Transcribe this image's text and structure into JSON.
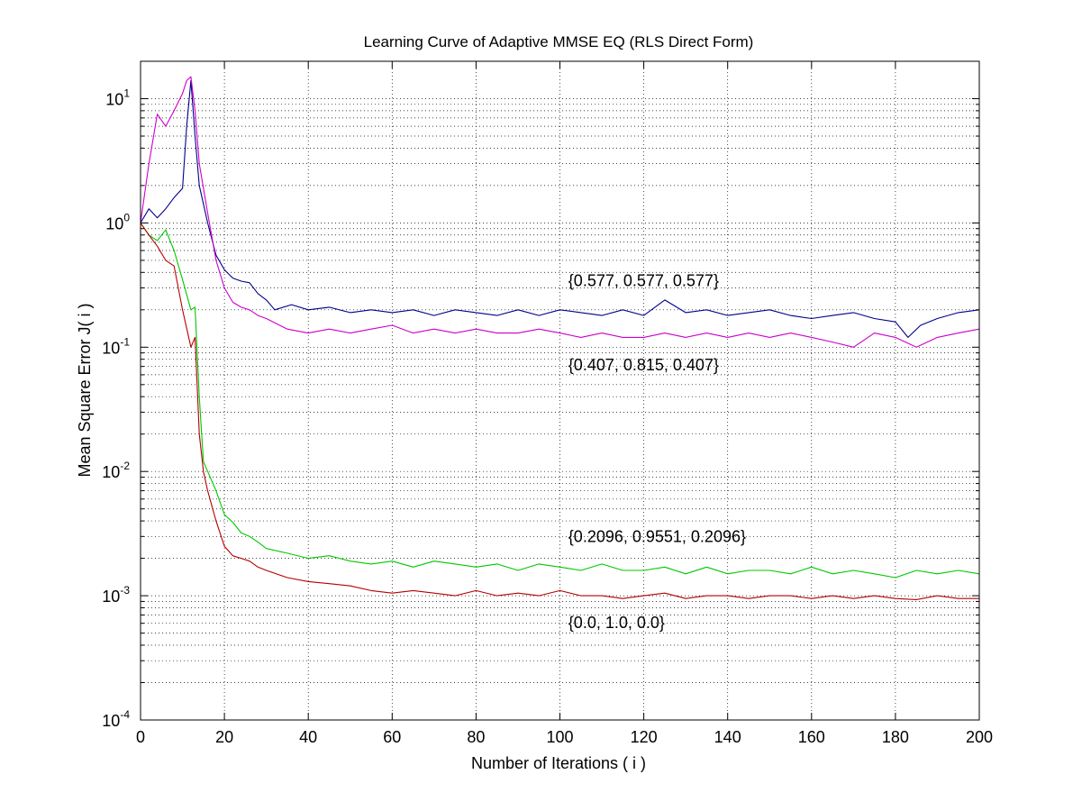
{
  "chart_data": {
    "type": "line",
    "title": "Learning Curve of Adaptive MMSE EQ (RLS Direct Form)",
    "xlabel": "Number of Iterations ( i )",
    "ylabel": "Mean Square Error  J( i )",
    "yscale": "log",
    "xlim": [
      0,
      200
    ],
    "ylim": [
      0.0001,
      20
    ],
    "grid": true,
    "x_ticks": [
      0,
      20,
      40,
      60,
      80,
      100,
      120,
      140,
      160,
      180,
      200
    ],
    "y_ticks": [
      {
        "value": 0.0001,
        "base": "10",
        "exp": "-4"
      },
      {
        "value": 0.001,
        "base": "10",
        "exp": "-3"
      },
      {
        "value": 0.01,
        "base": "10",
        "exp": "-2"
      },
      {
        "value": 0.1,
        "base": "10",
        "exp": "-1"
      },
      {
        "value": 1,
        "base": "10",
        "exp": "0"
      },
      {
        "value": 10,
        "base": "10",
        "exp": "1"
      }
    ],
    "series": [
      {
        "name": "{0.577, 0.577, 0.577}",
        "color": "#00008b",
        "label_x": 102,
        "label_y": 0.31,
        "points": [
          [
            0,
            1
          ],
          [
            2,
            1.3
          ],
          [
            4,
            1.1
          ],
          [
            6,
            1.3
          ],
          [
            8,
            1.6
          ],
          [
            10,
            1.9
          ],
          [
            11,
            6
          ],
          [
            12,
            14
          ],
          [
            13,
            5
          ],
          [
            14,
            2
          ],
          [
            16,
            1.0
          ],
          [
            18,
            0.55
          ],
          [
            20,
            0.42
          ],
          [
            22,
            0.36
          ],
          [
            24,
            0.34
          ],
          [
            26,
            0.33
          ],
          [
            28,
            0.27
          ],
          [
            30,
            0.24
          ],
          [
            32,
            0.2
          ],
          [
            36,
            0.22
          ],
          [
            40,
            0.2
          ],
          [
            45,
            0.21
          ],
          [
            50,
            0.19
          ],
          [
            55,
            0.2
          ],
          [
            60,
            0.19
          ],
          [
            65,
            0.2
          ],
          [
            70,
            0.18
          ],
          [
            75,
            0.2
          ],
          [
            80,
            0.19
          ],
          [
            85,
            0.18
          ],
          [
            90,
            0.2
          ],
          [
            95,
            0.18
          ],
          [
            100,
            0.2
          ],
          [
            105,
            0.19
          ],
          [
            110,
            0.18
          ],
          [
            115,
            0.2
          ],
          [
            120,
            0.18
          ],
          [
            125,
            0.24
          ],
          [
            130,
            0.19
          ],
          [
            135,
            0.2
          ],
          [
            140,
            0.18
          ],
          [
            145,
            0.19
          ],
          [
            150,
            0.2
          ],
          [
            155,
            0.18
          ],
          [
            160,
            0.17
          ],
          [
            165,
            0.18
          ],
          [
            170,
            0.19
          ],
          [
            175,
            0.17
          ],
          [
            180,
            0.16
          ],
          [
            183,
            0.12
          ],
          [
            186,
            0.15
          ],
          [
            190,
            0.17
          ],
          [
            195,
            0.19
          ],
          [
            200,
            0.2
          ]
        ]
      },
      {
        "name": "{0.407, 0.815, 0.407}",
        "color": "#cc00cc",
        "label_x": 102,
        "label_y": 0.065,
        "points": [
          [
            0,
            1
          ],
          [
            2,
            3
          ],
          [
            4,
            7.5
          ],
          [
            6,
            6
          ],
          [
            8,
            8
          ],
          [
            10,
            11
          ],
          [
            11,
            14
          ],
          [
            12,
            15
          ],
          [
            13,
            8
          ],
          [
            14,
            3
          ],
          [
            16,
            1.2
          ],
          [
            18,
            0.5
          ],
          [
            20,
            0.3
          ],
          [
            22,
            0.23
          ],
          [
            24,
            0.21
          ],
          [
            26,
            0.2
          ],
          [
            28,
            0.18
          ],
          [
            30,
            0.17
          ],
          [
            35,
            0.14
          ],
          [
            40,
            0.13
          ],
          [
            45,
            0.14
          ],
          [
            50,
            0.13
          ],
          [
            55,
            0.14
          ],
          [
            60,
            0.15
          ],
          [
            65,
            0.13
          ],
          [
            70,
            0.14
          ],
          [
            75,
            0.13
          ],
          [
            80,
            0.14
          ],
          [
            85,
            0.13
          ],
          [
            90,
            0.13
          ],
          [
            95,
            0.14
          ],
          [
            100,
            0.13
          ],
          [
            105,
            0.12
          ],
          [
            110,
            0.13
          ],
          [
            115,
            0.12
          ],
          [
            120,
            0.12
          ],
          [
            125,
            0.13
          ],
          [
            130,
            0.12
          ],
          [
            135,
            0.13
          ],
          [
            140,
            0.12
          ],
          [
            145,
            0.13
          ],
          [
            150,
            0.12
          ],
          [
            155,
            0.13
          ],
          [
            160,
            0.12
          ],
          [
            165,
            0.11
          ],
          [
            170,
            0.1
          ],
          [
            175,
            0.13
          ],
          [
            180,
            0.12
          ],
          [
            185,
            0.1
          ],
          [
            190,
            0.12
          ],
          [
            195,
            0.13
          ],
          [
            200,
            0.14
          ]
        ]
      },
      {
        "name": "{0.2096, 0.9551, 0.2096}",
        "color": "#00c800",
        "label_x": 102,
        "label_y": 0.0027,
        "points": [
          [
            0,
            1
          ],
          [
            2,
            0.8
          ],
          [
            4,
            0.72
          ],
          [
            6,
            0.88
          ],
          [
            8,
            0.6
          ],
          [
            10,
            0.35
          ],
          [
            12,
            0.2
          ],
          [
            13,
            0.21
          ],
          [
            14,
            0.04
          ],
          [
            15,
            0.012
          ],
          [
            16,
            0.01
          ],
          [
            18,
            0.007
          ],
          [
            20,
            0.0045
          ],
          [
            22,
            0.0039
          ],
          [
            24,
            0.0032
          ],
          [
            26,
            0.003
          ],
          [
            28,
            0.0027
          ],
          [
            30,
            0.0024
          ],
          [
            35,
            0.0022
          ],
          [
            40,
            0.002
          ],
          [
            45,
            0.0021
          ],
          [
            50,
            0.0019
          ],
          [
            55,
            0.0018
          ],
          [
            60,
            0.0019
          ],
          [
            65,
            0.0017
          ],
          [
            70,
            0.0019
          ],
          [
            75,
            0.0018
          ],
          [
            80,
            0.0017
          ],
          [
            85,
            0.0018
          ],
          [
            90,
            0.0016
          ],
          [
            95,
            0.0018
          ],
          [
            100,
            0.0017
          ],
          [
            105,
            0.0016
          ],
          [
            110,
            0.0018
          ],
          [
            115,
            0.0016
          ],
          [
            120,
            0.0016
          ],
          [
            125,
            0.0017
          ],
          [
            130,
            0.0015
          ],
          [
            135,
            0.0017
          ],
          [
            140,
            0.0015
          ],
          [
            145,
            0.0016
          ],
          [
            150,
            0.0016
          ],
          [
            155,
            0.0015
          ],
          [
            160,
            0.0017
          ],
          [
            165,
            0.0015
          ],
          [
            170,
            0.0016
          ],
          [
            175,
            0.0015
          ],
          [
            180,
            0.0014
          ],
          [
            185,
            0.0016
          ],
          [
            190,
            0.0015
          ],
          [
            195,
            0.0016
          ],
          [
            200,
            0.0015
          ]
        ]
      },
      {
        "name": "{0.0, 1.0, 0.0}",
        "color": "#b40000",
        "label_x": 102,
        "label_y": 0.00055,
        "points": [
          [
            0,
            1
          ],
          [
            2,
            0.8
          ],
          [
            4,
            0.65
          ],
          [
            6,
            0.5
          ],
          [
            8,
            0.45
          ],
          [
            10,
            0.2
          ],
          [
            12,
            0.1
          ],
          [
            13,
            0.12
          ],
          [
            14,
            0.02
          ],
          [
            15,
            0.01
          ],
          [
            16,
            0.007
          ],
          [
            18,
            0.004
          ],
          [
            20,
            0.0025
          ],
          [
            22,
            0.0021
          ],
          [
            24,
            0.002
          ],
          [
            26,
            0.0019
          ],
          [
            28,
            0.0017
          ],
          [
            30,
            0.0016
          ],
          [
            35,
            0.0014
          ],
          [
            40,
            0.0013
          ],
          [
            45,
            0.00125
          ],
          [
            50,
            0.0012
          ],
          [
            55,
            0.0011
          ],
          [
            60,
            0.00105
          ],
          [
            65,
            0.0011
          ],
          [
            70,
            0.00105
          ],
          [
            75,
            0.001
          ],
          [
            80,
            0.0011
          ],
          [
            85,
            0.001
          ],
          [
            90,
            0.00105
          ],
          [
            95,
            0.001
          ],
          [
            100,
            0.0011
          ],
          [
            105,
            0.001
          ],
          [
            110,
            0.001
          ],
          [
            115,
            0.00095
          ],
          [
            120,
            0.001
          ],
          [
            125,
            0.00105
          ],
          [
            130,
            0.00095
          ],
          [
            135,
            0.001
          ],
          [
            140,
            0.001
          ],
          [
            145,
            0.00095
          ],
          [
            150,
            0.001
          ],
          [
            155,
            0.001
          ],
          [
            160,
            0.00095
          ],
          [
            165,
            0.001
          ],
          [
            170,
            0.00095
          ],
          [
            175,
            0.001
          ],
          [
            180,
            0.00095
          ],
          [
            185,
            0.00093
          ],
          [
            190,
            0.001
          ],
          [
            195,
            0.00095
          ],
          [
            200,
            0.00095
          ]
        ]
      }
    ]
  }
}
